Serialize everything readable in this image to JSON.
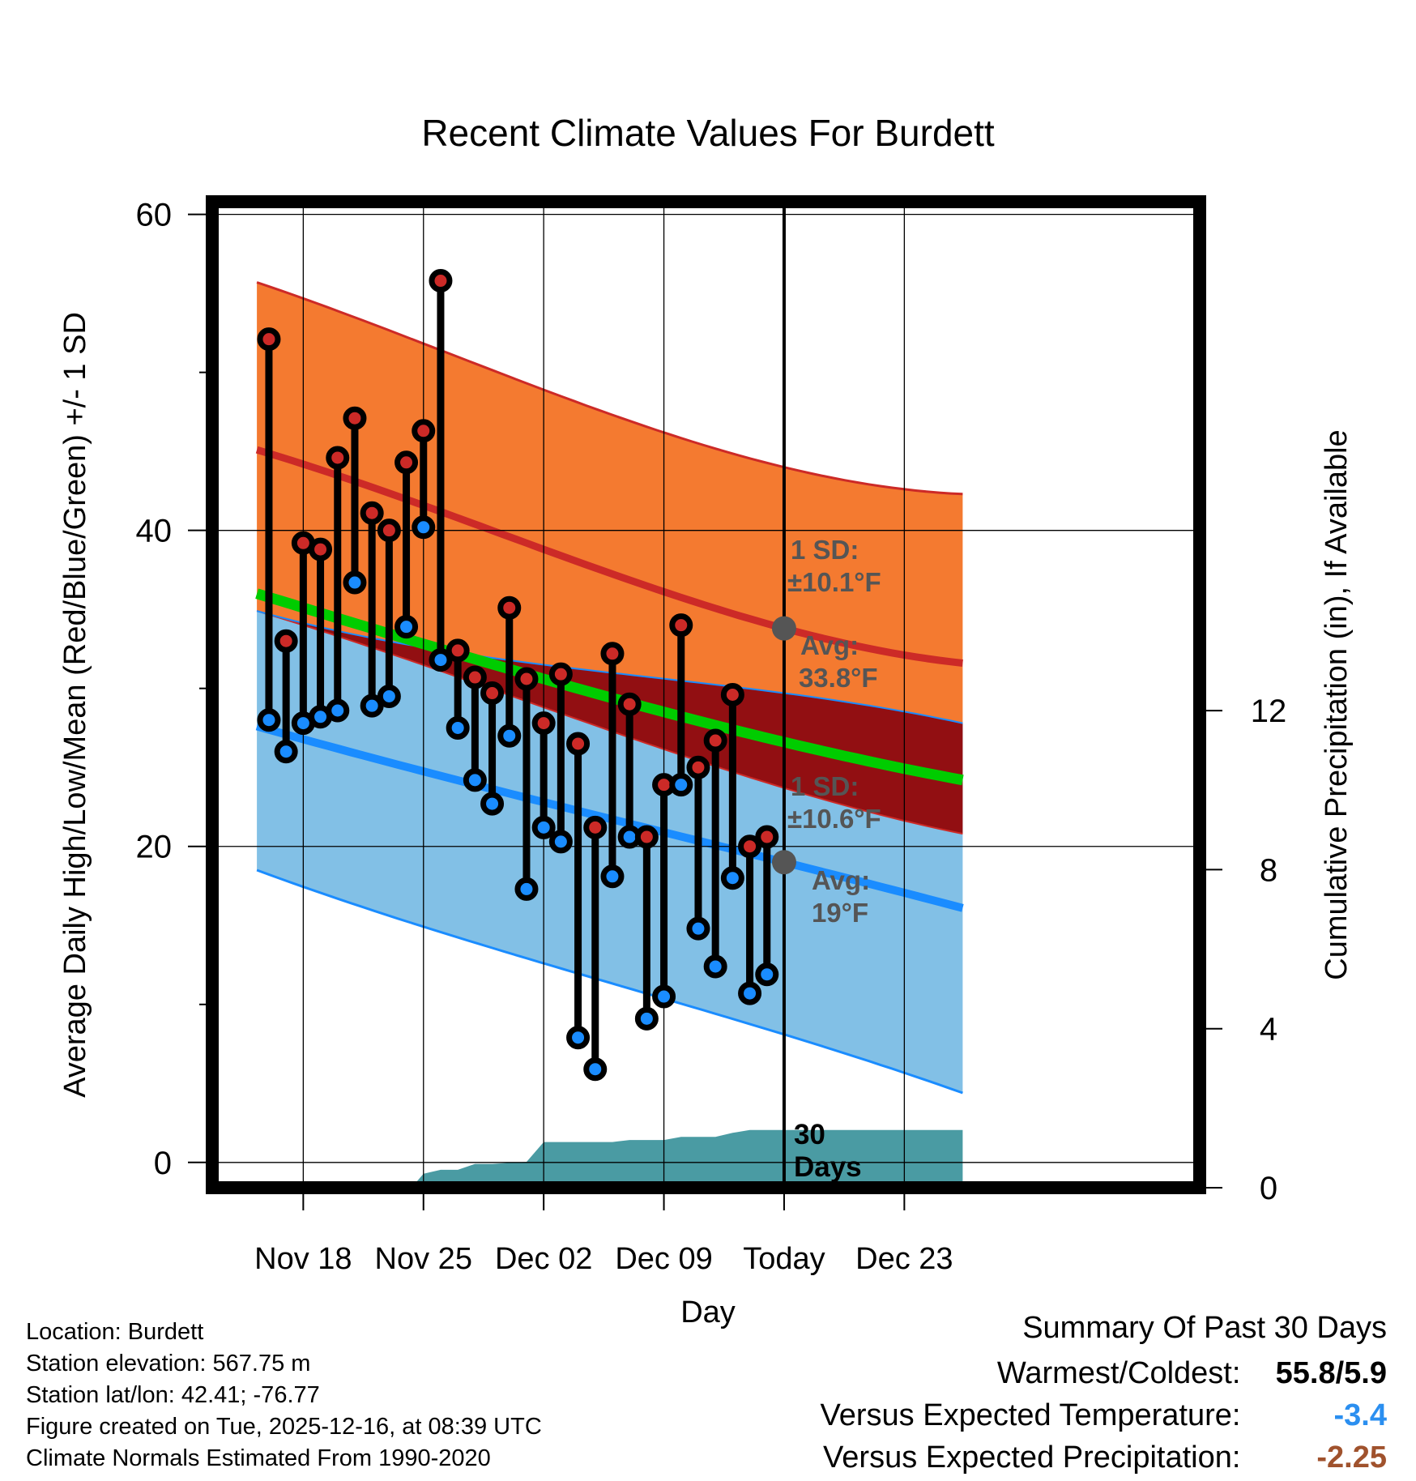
{
  "chart_data": {
    "type": "line",
    "title": "Recent Climate Values For Burdett",
    "xlabel": "Day",
    "ylabel": "Average Daily High/Low/Mean (Red/Blue/Green) +/- 1 SD",
    "ylabel_right": "Cumulative Precipitation (in), If Available",
    "ylim": [
      -1.6,
      60.8
    ],
    "y_ticks": [
      0,
      20,
      40,
      60
    ],
    "y_minor_ticks": [
      10,
      30,
      50
    ],
    "ylim_right": [
      0,
      24.8
    ],
    "y_ticks_right": [
      0,
      4,
      8,
      12
    ],
    "x_range": [
      -5.3,
      52.2
    ],
    "x_ticks": [
      {
        "day": 0,
        "label": "Nov 18"
      },
      {
        "day": 7,
        "label": "Nov 25"
      },
      {
        "day": 14,
        "label": "Dec 02"
      },
      {
        "day": 21,
        "label": "Dec 09"
      },
      {
        "day": 28,
        "label": "Today"
      },
      {
        "day": 35,
        "label": "Dec 23"
      }
    ],
    "today_day": 28,
    "normals": {
      "x": [
        -2.7,
        14,
        28,
        38.4
      ],
      "high_avg": [
        45.1,
        38.8,
        33.8,
        31.6
      ],
      "high_upper": [
        55.7,
        48.9,
        44.0,
        42.3
      ],
      "high_lower": [
        34.9,
        28.8,
        23.7,
        20.8
      ],
      "low_avg": [
        27.6,
        22.8,
        19.0,
        16.1
      ],
      "low_upper": [
        34.9,
        31.5,
        29.7,
        27.8
      ],
      "low_lower": [
        18.5,
        12.6,
        8.1,
        4.4
      ],
      "mean_avg": [
        36.0,
        30.6,
        26.6,
        24.2
      ]
    },
    "daily": [
      {
        "day": -2,
        "high": 52.1,
        "low": 28.0
      },
      {
        "day": -1,
        "high": 33.0,
        "low": 26.0
      },
      {
        "day": 0,
        "high": 39.2,
        "low": 27.8
      },
      {
        "day": 1,
        "high": 38.8,
        "low": 28.2
      },
      {
        "day": 2,
        "high": 44.6,
        "low": 28.6
      },
      {
        "day": 3,
        "high": 47.1,
        "low": 36.7
      },
      {
        "day": 4,
        "high": 41.1,
        "low": 28.9
      },
      {
        "day": 5,
        "high": 40.0,
        "low": 29.5
      },
      {
        "day": 6,
        "high": 44.3,
        "low": 33.9
      },
      {
        "day": 7,
        "high": 46.3,
        "low": 40.2
      },
      {
        "day": 8,
        "high": 55.8,
        "low": 31.8
      },
      {
        "day": 9,
        "high": 32.4,
        "low": 27.5
      },
      {
        "day": 10,
        "high": 30.7,
        "low": 24.2
      },
      {
        "day": 11,
        "high": 29.7,
        "low": 22.7
      },
      {
        "day": 12,
        "high": 35.1,
        "low": 27.0
      },
      {
        "day": 13,
        "high": 30.6,
        "low": 17.3
      },
      {
        "day": 14,
        "high": 27.8,
        "low": 21.2
      },
      {
        "day": 15,
        "high": 30.9,
        "low": 20.3
      },
      {
        "day": 16,
        "high": 26.5,
        "low": 7.9
      },
      {
        "day": 17,
        "high": 21.2,
        "low": 5.9
      },
      {
        "day": 18,
        "high": 32.2,
        "low": 18.1
      },
      {
        "day": 19,
        "high": 29.0,
        "low": 20.6
      },
      {
        "day": 20,
        "high": 20.6,
        "low": 9.1
      },
      {
        "day": 21,
        "high": 23.9,
        "low": 10.5
      },
      {
        "day": 22,
        "high": 34.0,
        "low": 23.9
      },
      {
        "day": 23,
        "high": 25.0,
        "low": 14.8
      },
      {
        "day": 24,
        "high": 26.7,
        "low": 12.4
      },
      {
        "day": 25,
        "high": 29.6,
        "low": 18.0
      },
      {
        "day": 26,
        "high": 20.0,
        "low": 10.7
      },
      {
        "day": 27,
        "high": 20.6,
        "low": 11.9
      }
    ],
    "precip_cumulative": {
      "x": [
        -2.7,
        6.3,
        7.0,
        8.0,
        9.0,
        10.0,
        11.0,
        13.0,
        14.0,
        18.0,
        19.0,
        21.0,
        22.0,
        24.0,
        25.0,
        26.0,
        27.0,
        28.0,
        38.4
      ],
      "values": [
        0,
        0,
        0.35,
        0.45,
        0.45,
        0.6,
        0.6,
        0.65,
        1.15,
        1.15,
        1.2,
        1.2,
        1.28,
        1.28,
        1.38,
        1.45,
        1.45,
        1.45,
        1.45
      ]
    },
    "annotations": {
      "high_sd_label": "1 SD:",
      "high_sd_value": "±10.1°F",
      "high_avg_label": "Avg:",
      "high_avg_value": "33.8°F",
      "low_sd_label": "1 SD:",
      "low_sd_value": "±10.6°F",
      "low_avg_label": "Avg:",
      "low_avg_value": "19°F",
      "days_num": "30",
      "days_word": "Days"
    },
    "colors": {
      "high_band": "#f47a30",
      "high_line": "#cc2a27",
      "low_band": "#82c0e6",
      "low_line": "#1a8cff",
      "overlap_band": "#920f12",
      "mean_line": "#00cc00",
      "precip_fill": "#4a9ba3",
      "high_dot": "#cc2a27",
      "low_dot": "#1a8cff",
      "avg_marker": "#555555",
      "annotation_text": "#555555"
    }
  },
  "info": {
    "location": "Location: Burdett",
    "elevation": "Station elevation: 567.75 m",
    "latlon": "Station lat/lon: 42.41; -76.77",
    "created": "Figure created on Tue, 2025-12-16, at 08:39 UTC",
    "normals": "Climate Normals Estimated From 1990-2020"
  },
  "summary": {
    "title": "Summary Of Past 30 Days",
    "warmest_coldest_label": "Warmest/Coldest:",
    "warmest_coldest_value": "55.8/5.9",
    "temp_label": "Versus Expected Temperature:",
    "temp_value": "-3.4",
    "temp_color": "#2b8ff0",
    "precip_label": "Versus Expected Precipitation:",
    "precip_value": "-2.25",
    "precip_color": "#a0522d"
  }
}
